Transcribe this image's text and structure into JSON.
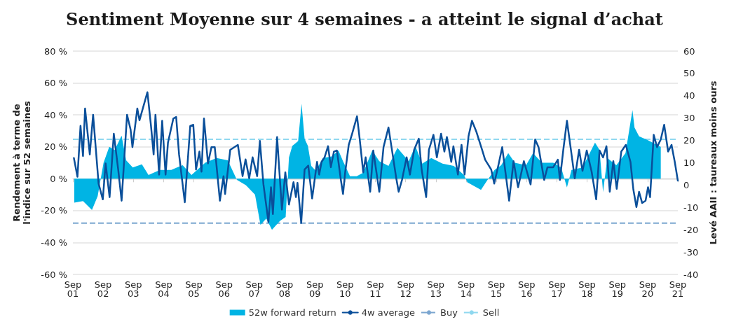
{
  "chart_data": {
    "type": "line",
    "title": "Sentiment Moyenne sur 4 semaines - a atteint le signal d’achat",
    "ylabel": "Rendement à terme de l'indice sur 52 semaines",
    "y2label": "Levé AAII : taureaux moins ours",
    "xlim": [
      "2001-09-01",
      "2021-09-01"
    ],
    "xticks": [
      {
        "value": "2001-09-01",
        "label": "Sep 01"
      },
      {
        "value": "2002-09-01",
        "label": "Sep 02"
      },
      {
        "value": "2003-09-01",
        "label": "Sep 03"
      },
      {
        "value": "2004-09-01",
        "label": "Sep 04"
      },
      {
        "value": "2005-09-01",
        "label": "Sep 05"
      },
      {
        "value": "2006-09-01",
        "label": "Sep 06"
      },
      {
        "value": "2007-09-01",
        "label": "Sep 07"
      },
      {
        "value": "2008-09-01",
        "label": "Sep 08"
      },
      {
        "value": "2009-09-01",
        "label": "Sep 09"
      },
      {
        "value": "2010-09-01",
        "label": "Sep 10"
      },
      {
        "value": "2011-09-01",
        "label": "Sep 11"
      },
      {
        "value": "2012-09-01",
        "label": "Sep 12"
      },
      {
        "value": "2013-09-01",
        "label": "Sep 13"
      },
      {
        "value": "2014-09-01",
        "label": "Sep 14"
      },
      {
        "value": "2015-09-01",
        "label": "Sep 15"
      },
      {
        "value": "2016-09-01",
        "label": "Sep 16"
      },
      {
        "value": "2017-09-01",
        "label": "Sep 17"
      },
      {
        "value": "2018-09-01",
        "label": "Sep 18"
      },
      {
        "value": "2019-09-01",
        "label": "Sep 19"
      },
      {
        "value": "2020-09-01",
        "label": "Sep 20"
      },
      {
        "value": "2021-09-01",
        "label": "Sep 21"
      }
    ],
    "ylim": [
      -60,
      80
    ],
    "yticks": [
      {
        "value": -60,
        "label": "-60 %"
      },
      {
        "value": -40,
        "label": "-40 %"
      },
      {
        "value": -20,
        "label": "-20 %"
      },
      {
        "value": 0,
        "label": "0 %"
      },
      {
        "value": 20,
        "label": "20 %"
      },
      {
        "value": 40,
        "label": "40 %"
      },
      {
        "value": 60,
        "label": "60 %"
      },
      {
        "value": 80,
        "label": "80 %"
      }
    ],
    "y2lim": [
      -40,
      60
    ],
    "y2ticks": [
      -40,
      -30,
      -20,
      -10,
      0,
      10,
      20,
      30,
      40,
      50,
      60
    ],
    "grid": "y",
    "legend": "bottom",
    "marker": "none",
    "series": [
      {
        "name": "52w forward return",
        "type": "area",
        "color": "#00b4e4",
        "x": [
          "2001-09-17",
          "2002-01-01",
          "2002-04-19",
          "2002-06-27",
          "2002-09-06",
          "2002-11-14",
          "2003-01-19",
          "2003-04-12",
          "2003-06-06",
          "2003-08-25",
          "2003-12-13",
          "2004-03-02",
          "2004-07-19",
          "2004-12-02",
          "2005-04-19",
          "2005-08-03",
          "2006-01-15",
          "2006-06-02",
          "2006-10-15",
          "2007-02-03",
          "2007-05-21",
          "2007-09-09",
          "2007-11-14",
          "2008-01-23",
          "2008-04-01",
          "2008-07-05",
          "2008-09-13",
          "2008-10-23",
          "2008-12-02",
          "2009-02-11",
          "2009-03-24",
          "2009-04-30",
          "2009-06-09",
          "2009-07-19",
          "2009-09-13",
          "2009-12-06",
          "2010-03-24",
          "2010-06-13",
          "2010-08-07",
          "2010-10-30",
          "2011-01-19",
          "2011-04-08",
          "2011-07-26",
          "2011-10-19",
          "2012-02-07",
          "2012-05-25",
          "2012-10-08",
          "2012-12-27",
          "2013-03-20",
          "2013-07-08",
          "2013-11-21",
          "2014-04-05",
          "2014-08-07",
          "2014-09-17",
          "2015-02-28",
          "2015-05-18",
          "2015-08-11",
          "2015-10-30",
          "2016-01-23",
          "2016-04-12",
          "2016-08-25",
          "2016-11-18",
          "2017-03-06",
          "2017-07-19",
          "2017-10-23",
          "2018-01-01",
          "2018-02-25",
          "2018-07-08",
          "2018-12-06",
          "2019-01-30",
          "2019-03-13",
          "2019-05-03",
          "2019-08-21",
          "2019-12-09",
          "2020-03-02",
          "2020-03-27",
          "2020-05-21",
          "2020-09-09",
          "2020-12-27",
          "2021-02-07"
        ],
        "values": [
          -15,
          -14,
          -19.6,
          -11,
          10,
          20,
          18,
          27,
          11.5,
          7,
          9,
          2.3,
          5.5,
          5.5,
          8.5,
          2.3,
          10,
          13,
          11.5,
          -0.8,
          -4,
          -10,
          -29,
          -25,
          -32,
          -26.5,
          -24,
          13.3,
          20.5,
          23.6,
          47,
          25,
          20.5,
          8,
          5,
          13,
          14,
          17.7,
          11,
          1.5,
          1.5,
          3.8,
          17.7,
          11,
          8,
          19.3,
          11,
          20.5,
          9.5,
          13,
          9.5,
          8,
          2.3,
          -2.3,
          -7,
          -0.8,
          5.5,
          8.5,
          16,
          10,
          8.5,
          16,
          10,
          10,
          7,
          -5.5,
          5.5,
          7,
          22.6,
          18,
          -8.4,
          13,
          8.5,
          16,
          43,
          32,
          26.6,
          24,
          21,
          20
        ]
      },
      {
        "name": "4w average",
        "axis": "y2",
        "color": "#0a4f9a",
        "x": [
          "2001-09-13",
          "2001-10-26",
          "2001-12-02",
          "2002-01-01",
          "2002-01-26",
          "2002-03-24",
          "2002-05-03",
          "2002-07-08",
          "2002-08-28",
          "2002-10-01",
          "2002-11-18",
          "2003-01-08",
          "2003-03-02",
          "2003-04-12",
          "2003-06-17",
          "2003-07-30",
          "2003-08-21",
          "2003-10-19",
          "2003-11-14",
          "2004-02-18",
          "2004-04-01",
          "2004-05-03",
          "2004-05-25",
          "2004-07-08",
          "2004-08-14",
          "2004-09-24",
          "2004-10-23",
          "2004-12-27",
          "2005-01-30",
          "2005-03-06",
          "2005-05-14",
          "2005-07-19",
          "2005-08-25",
          "2005-09-27",
          "2005-11-07",
          "2005-12-02",
          "2006-01-01",
          "2006-02-18",
          "2006-04-01",
          "2006-05-11",
          "2006-07-12",
          "2006-08-25",
          "2006-09-13",
          "2006-11-14",
          "2007-02-14",
          "2007-04-12",
          "2007-05-18",
          "2007-07-01",
          "2007-08-11",
          "2007-10-05",
          "2007-11-07",
          "2007-12-20",
          "2008-02-18",
          "2008-03-20",
          "2008-04-12",
          "2008-06-02",
          "2008-07-30",
          "2008-09-09",
          "2008-10-23",
          "2008-12-17",
          "2009-01-15",
          "2009-02-03",
          "2009-03-20",
          "2009-04-30",
          "2009-06-13",
          "2009-07-30",
          "2009-09-27",
          "2009-10-23",
          "2009-11-21",
          "2009-12-27",
          "2010-02-07",
          "2010-03-13",
          "2010-04-19",
          "2010-05-25",
          "2010-07-12",
          "2010-08-07",
          "2010-09-02",
          "2010-10-15",
          "2010-11-25",
          "2011-01-23",
          "2011-02-25",
          "2011-04-08",
          "2011-05-07",
          "2011-07-01",
          "2011-08-07",
          "2011-10-19",
          "2011-12-09",
          "2012-02-07",
          "2012-03-13",
          "2012-05-11",
          "2012-06-09",
          "2012-07-19",
          "2012-09-13",
          "2012-10-23",
          "2012-12-13",
          "2013-02-07",
          "2013-03-13",
          "2013-05-07",
          "2013-06-09",
          "2013-08-03",
          "2013-09-13",
          "2013-11-03",
          "2013-12-13",
          "2014-01-12",
          "2014-03-06",
          "2014-04-01",
          "2014-05-25",
          "2014-07-08",
          "2014-08-14",
          "2014-10-01",
          "2014-11-11",
          "2015-01-05",
          "2015-03-13",
          "2015-04-19",
          "2015-07-01",
          "2015-08-07",
          "2015-10-01",
          "2015-11-11",
          "2016-02-03",
          "2016-03-27",
          "2016-05-21",
          "2016-07-30",
          "2016-10-19",
          "2016-12-13",
          "2017-01-23",
          "2017-04-01",
          "2017-05-11",
          "2017-07-19",
          "2017-09-13",
          "2017-10-08",
          "2017-11-18",
          "2018-01-01",
          "2018-02-21",
          "2018-04-05",
          "2018-05-28",
          "2018-07-08",
          "2018-08-28",
          "2018-10-26",
          "2018-12-20",
          "2019-01-30",
          "2019-03-13",
          "2019-04-23",
          "2019-06-02",
          "2019-07-15",
          "2019-08-25",
          "2019-10-19",
          "2019-12-13",
          "2020-02-07",
          "2020-03-13",
          "2020-04-19",
          "2020-05-21",
          "2020-06-27",
          "2020-08-07",
          "2020-09-06",
          "2020-10-01",
          "2020-11-14",
          "2020-12-24",
          "2021-02-07",
          "2021-03-20",
          "2021-05-07",
          "2021-06-17",
          "2021-07-26",
          "2021-09-01"
        ],
        "values": [
          12.1,
          3.7,
          26.5,
          13,
          34.3,
          13.7,
          31.5,
          0.7,
          -6.4,
          9.7,
          -5.4,
          23,
          7,
          -7,
          31.5,
          24.8,
          17,
          34.3,
          29,
          41.6,
          26.5,
          13.7,
          31.5,
          4.7,
          28.8,
          4.7,
          19,
          29.8,
          30.5,
          13.7,
          -7.7,
          26.5,
          27,
          7,
          15,
          6,
          29.8,
          9.7,
          17,
          17,
          -7,
          4,
          -4,
          15.8,
          18,
          4,
          11.5,
          3,
          12.4,
          4,
          19.8,
          0.3,
          -16.5,
          -1,
          -13,
          21.5,
          -11,
          5.7,
          -8.7,
          1.3,
          -5.4,
          1,
          -17,
          7,
          8.7,
          -6,
          10.4,
          4.7,
          10.4,
          12.4,
          17.4,
          8,
          15,
          15.5,
          2.3,
          -4,
          5.7,
          18,
          23,
          30.8,
          20.4,
          5.7,
          12.4,
          -3,
          15.5,
          -3,
          17,
          25.8,
          17.4,
          3,
          -3,
          2.3,
          12.4,
          4.7,
          15.8,
          20.8,
          7,
          -5.4,
          15.8,
          22.5,
          12.4,
          23,
          15,
          21.5,
          10.4,
          17.4,
          4.7,
          18,
          4.7,
          22,
          28.8,
          23.7,
          15.8,
          11.4,
          7,
          0.7,
          9.7,
          17,
          -7,
          10.7,
          -1,
          10.7,
          0.3,
          20.4,
          17,
          2.3,
          8,
          8,
          11.4,
          2.3,
          15.8,
          28.8,
          15,
          3,
          15.8,
          6.4,
          15.5,
          6,
          -6.4,
          15.5,
          12.4,
          17.4,
          -3,
          10.7,
          -1.7,
          15,
          18,
          10.4,
          -2,
          -9.8,
          -3,
          -8,
          -7,
          -1,
          -5.4,
          22.5,
          17,
          20.4,
          27,
          15,
          18,
          10.4,
          2
        ]
      }
    ],
    "ref_lines": [
      {
        "axis": "y2",
        "value": -17,
        "label": "Buy",
        "color": "#7ba6d0",
        "line_style": "dashed"
      },
      {
        "axis": "y2",
        "value": 20.5,
        "label": "Sell",
        "color": "#8fd8ef",
        "line_style": "dashed"
      }
    ]
  }
}
